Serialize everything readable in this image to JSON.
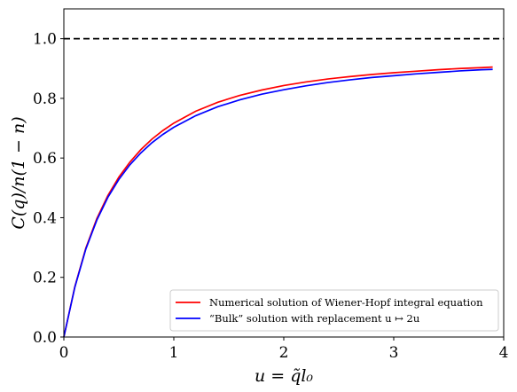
{
  "chart_data": {
    "type": "line",
    "xlabel": "u = q̃l₀",
    "ylabel": "C(q)/n(1 − n)",
    "xlim": [
      0,
      4
    ],
    "ylim": [
      0,
      1.1
    ],
    "x_ticks": [
      "0",
      "1",
      "2",
      "3",
      "4"
    ],
    "y_ticks": [
      "0.0",
      "0.2",
      "0.4",
      "0.6",
      "0.8",
      "1.0"
    ],
    "grid": false,
    "legend_position": "lower-right",
    "reference_line": {
      "y": 1.0,
      "style": "dashed",
      "color": "#000000"
    },
    "series": [
      {
        "name": "Numerical solution of Wiener-Hopf integral equation",
        "color": "#ff0000",
        "x": [
          0,
          0.1,
          0.2,
          0.3,
          0.4,
          0.5,
          0.6,
          0.7,
          0.8,
          0.9,
          1.0,
          1.2,
          1.4,
          1.6,
          1.8,
          2.0,
          2.2,
          2.4,
          2.6,
          2.8,
          3.0,
          3.2,
          3.4,
          3.6,
          3.8,
          3.9
        ],
        "y": [
          0,
          0.169,
          0.298,
          0.397,
          0.474,
          0.536,
          0.586,
          0.628,
          0.663,
          0.692,
          0.717,
          0.757,
          0.787,
          0.81,
          0.828,
          0.843,
          0.855,
          0.865,
          0.873,
          0.88,
          0.886,
          0.891,
          0.896,
          0.9,
          0.903,
          0.905
        ]
      },
      {
        "name": "“Bulk” solution with replacement u ↦ 2u",
        "color": "#0000ff",
        "x": [
          0,
          0.1,
          0.2,
          0.3,
          0.4,
          0.5,
          0.6,
          0.7,
          0.8,
          0.9,
          1.0,
          1.2,
          1.4,
          1.6,
          1.8,
          2.0,
          2.2,
          2.4,
          2.6,
          2.8,
          3.0,
          3.2,
          3.4,
          3.6,
          3.8,
          3.9
        ],
        "y": [
          0,
          0.167,
          0.295,
          0.392,
          0.468,
          0.528,
          0.577,
          0.617,
          0.651,
          0.679,
          0.703,
          0.742,
          0.772,
          0.795,
          0.814,
          0.829,
          0.842,
          0.853,
          0.862,
          0.87,
          0.876,
          0.882,
          0.887,
          0.892,
          0.896,
          0.897
        ]
      }
    ]
  }
}
